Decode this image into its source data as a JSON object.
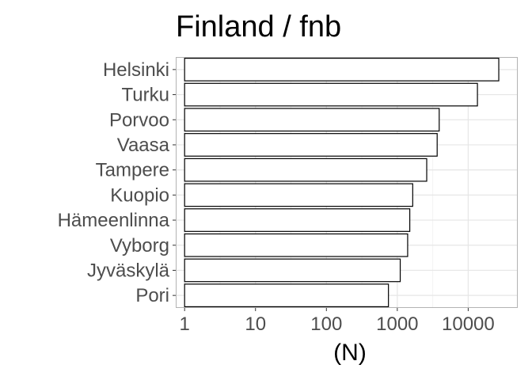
{
  "chart_data": {
    "type": "bar",
    "orientation": "horizontal",
    "title": "Finland / fnb",
    "xlabel": "(N)",
    "ylabel": "",
    "x_scale": "log10",
    "xlim": [
      0.75,
      50000
    ],
    "x_ticks": [
      1,
      10,
      100,
      1000,
      10000
    ],
    "x_tick_labels": [
      "1",
      "10",
      "100",
      "1000",
      "10000"
    ],
    "categories": [
      "Helsinki",
      "Turku",
      "Porvoo",
      "Vaasa",
      "Tampere",
      "Kuopio",
      "Hämeenlinna",
      "Vyborg",
      "Jyväskylä",
      "Pori"
    ],
    "values": [
      27000,
      13500,
      3900,
      3650,
      2600,
      1650,
      1500,
      1400,
      1100,
      750
    ],
    "grid": true,
    "legend": "none",
    "colors": {
      "bar_fill": "#ffffff",
      "bar_stroke": "#000000",
      "grid_major": "#e6e6e6",
      "grid_minor": "#f2f2f2",
      "panel_border": "#b3b3b3",
      "tick_label": "#4d4d4d",
      "title": "#000000"
    }
  }
}
